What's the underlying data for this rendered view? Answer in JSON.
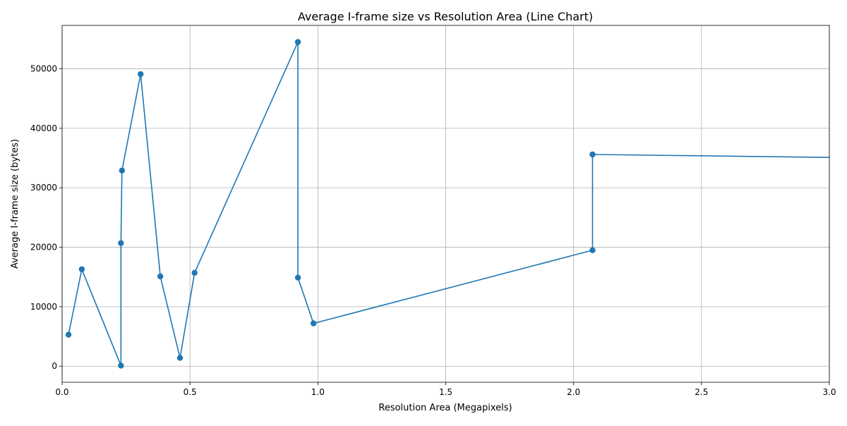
{
  "chart_data": {
    "type": "line",
    "title": "Average I-frame size vs Resolution Area (Line Chart)",
    "xlabel": "Resolution Area (Megapixels)",
    "ylabel": "Average I-frame size (bytes)",
    "xlim": [
      0,
      3.0
    ],
    "ylim": [
      -2700,
      57300
    ],
    "xticks": [
      0.0,
      0.5,
      1.0,
      1.5,
      2.0,
      2.5,
      3.0
    ],
    "xtick_labels": [
      "0.0",
      "0.5",
      "1.0",
      "1.5",
      "2.0",
      "2.5",
      "3.0"
    ],
    "yticks": [
      0,
      10000,
      20000,
      30000,
      40000,
      50000
    ],
    "ytick_labels": [
      "0",
      "10000",
      "20000",
      "30000",
      "40000",
      "50000"
    ],
    "grid": true,
    "color": "#1f77b4",
    "series": [
      {
        "marker": "circle",
        "x": [
          0.025,
          0.077,
          0.23,
          0.23,
          0.234,
          0.307,
          0.384,
          0.461,
          0.518,
          0.922,
          0.922,
          0.983,
          2.074,
          2.074,
          3.2
        ],
        "y": [
          5300,
          16300,
          100,
          20700,
          32900,
          49100,
          15100,
          1400,
          15700,
          54500,
          14900,
          7200,
          19500,
          35600,
          35000
        ]
      }
    ]
  }
}
